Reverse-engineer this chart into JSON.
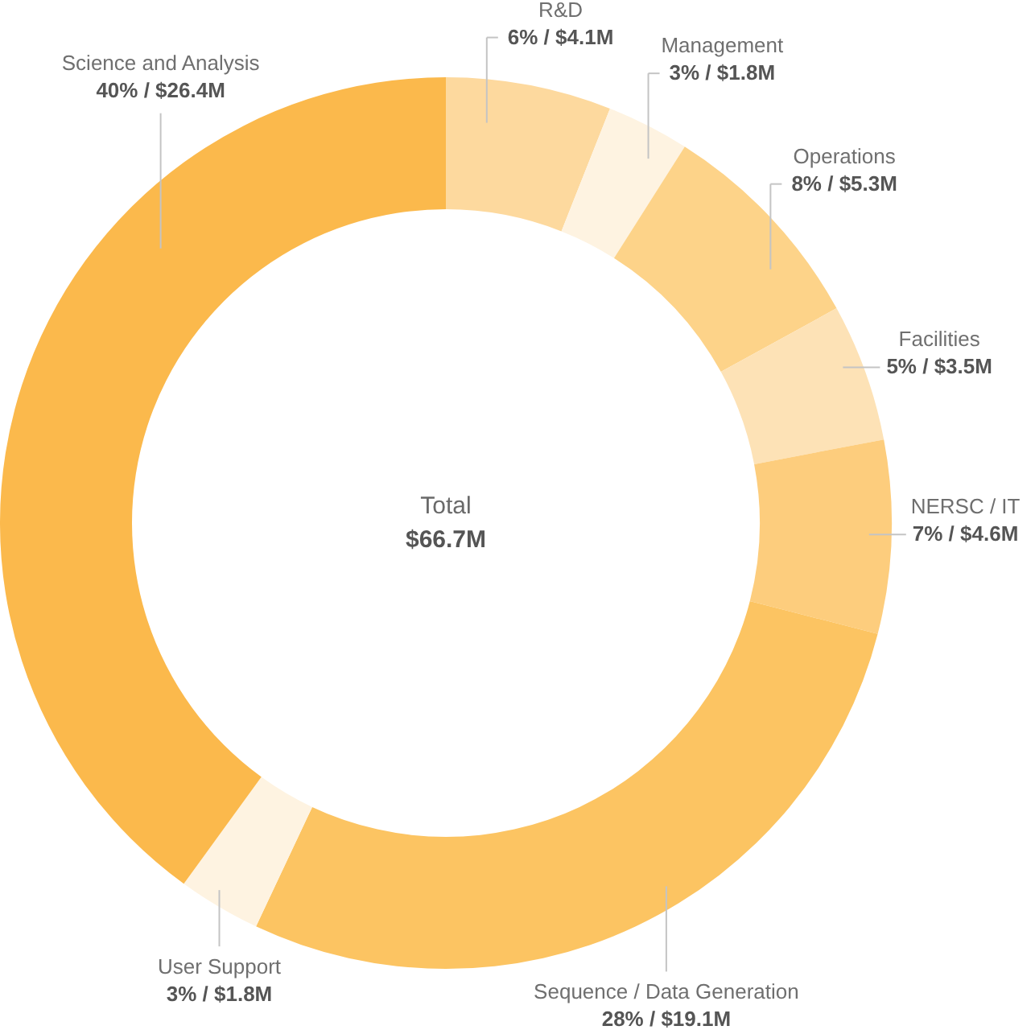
{
  "chart_data": {
    "type": "donut",
    "categories": [
      "R&D",
      "Management",
      "Operations",
      "Facilities",
      "NERSC / IT",
      "Sequence / Data Generation",
      "User Support",
      "Science and Analysis"
    ],
    "values": [
      6,
      3,
      8,
      5,
      7,
      28,
      3,
      40
    ],
    "colors": [
      "#fdd99e",
      "#fef3e1",
      "#fdd389",
      "#fde2b6",
      "#fdcd7d",
      "#fcc462",
      "#fef3e1",
      "#fbb94c"
    ],
    "value_labels": [
      "6% / $4.1M",
      "3% / $1.8M",
      "8% / $5.3M",
      "5% / $3.5M",
      "7% / $4.6M",
      "28% / $19.1M",
      "3% / $1.8M",
      "40% / $26.4M"
    ],
    "annotations": [
      "Total",
      "$66.7M"
    ]
  }
}
